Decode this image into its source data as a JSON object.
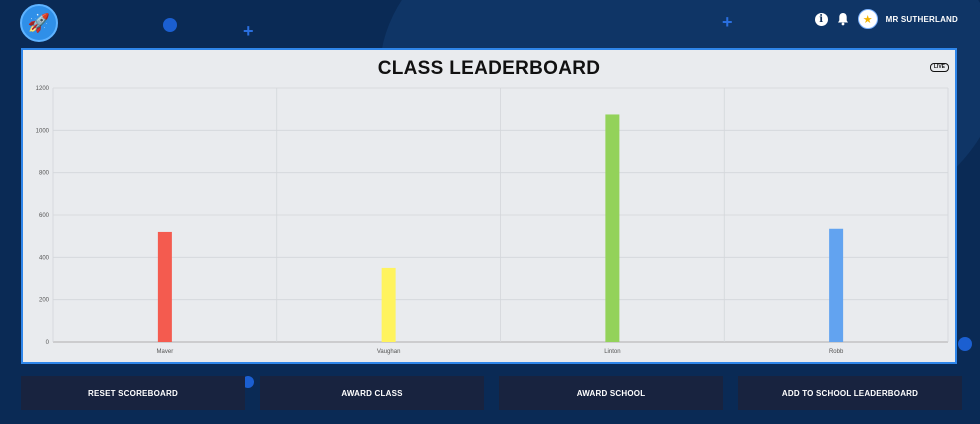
{
  "header": {
    "username": "MR SUTHERLAND",
    "icons": [
      "rocket-icon",
      "info-icon",
      "bell-icon",
      "avatar-icon"
    ]
  },
  "leaderboard": {
    "title": "CLASS LEADERBOARD",
    "badge": "LIVE"
  },
  "chart_data": {
    "type": "bar",
    "categories": [
      "Maver",
      "Vaughan",
      "Linton",
      "Robb"
    ],
    "values": [
      520,
      350,
      1075,
      535
    ],
    "colors": [
      "#f45b4f",
      "#fff35e",
      "#93d25a",
      "#62a3f0"
    ],
    "ylim": [
      0,
      1200
    ],
    "yticks": [
      0,
      200,
      400,
      600,
      800,
      1000,
      1200
    ],
    "grid": true,
    "xlabel": "",
    "ylabel": ""
  },
  "actions": [
    {
      "label": "RESET SCOREBOARD"
    },
    {
      "label": "AWARD CLASS"
    },
    {
      "label": "AWARD SCHOOL"
    },
    {
      "label": "ADD TO SCHOOL LEADERBOARD"
    }
  ]
}
